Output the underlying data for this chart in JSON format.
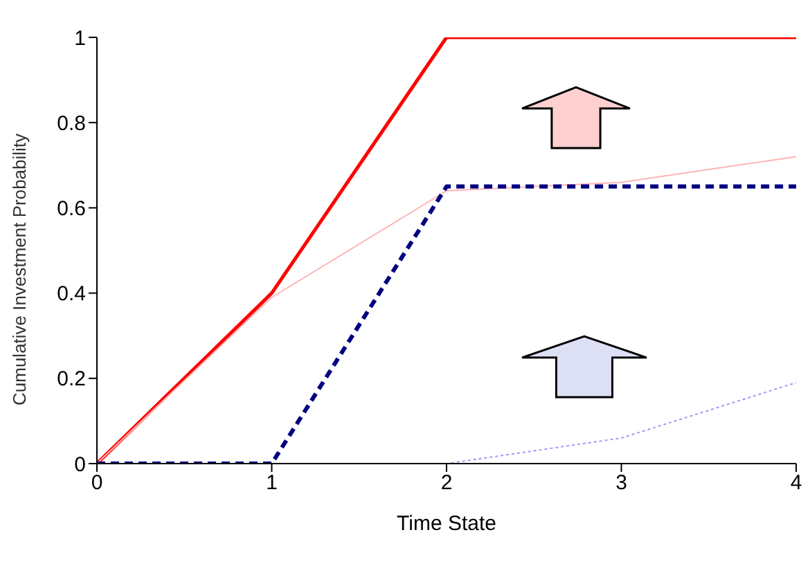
{
  "chart_data": {
    "type": "line",
    "xlabel": "Time State",
    "ylabel": "Cumulative Investment Probability",
    "x": [
      0,
      1,
      2,
      3,
      4
    ],
    "series": [
      {
        "color": "#ff0000",
        "values": [
          0,
          0.4,
          1,
          1,
          1
        ],
        "line_style": "solid"
      },
      {
        "color": "#ffb3b3",
        "values": [
          0,
          0.39,
          0.64,
          0.66,
          0.72
        ],
        "line_style": "solid"
      },
      {
        "color": "#000080",
        "values": [
          0,
          0,
          0.65,
          0.65,
          0.65
        ],
        "line_style": "dashed"
      },
      {
        "color": "#9999ff",
        "values": [
          0,
          0,
          0,
          0.06,
          0.19
        ],
        "line_style": "dotted"
      }
    ],
    "xlim": [
      0,
      4
    ],
    "xticks": [
      0,
      1,
      2,
      3,
      4
    ],
    "ylim": [
      0,
      1
    ],
    "yticks": [
      0,
      0.2,
      0.4,
      0.6,
      0.8,
      1
    ],
    "grid": false,
    "legend": false,
    "marker": "none"
  }
}
